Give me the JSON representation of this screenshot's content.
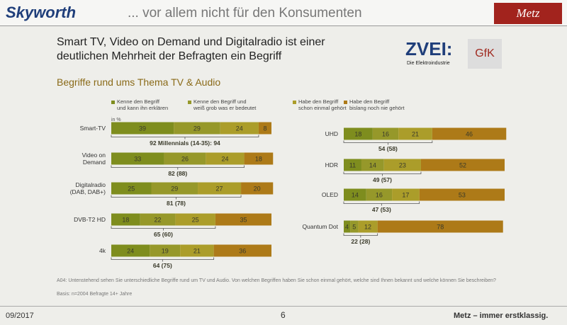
{
  "header": {
    "brand": "Skyworth",
    "tagline": "... vor allem nicht für den Konsumenten",
    "logo": "Metz",
    "title": "Smart TV, Video on Demand und Digitalradio ist einer\ndeutlichen Mehrheit der Befragten ein Begriff",
    "partner_logo": "ZVEI:",
    "partner_sub": "Die Elektroindustrie",
    "partner2": "GfK"
  },
  "chart_data": {
    "type": "stacked-bar-horizontal",
    "subtitle": "Begriffe rund ums Thema TV & Audio",
    "unit_label": "in %",
    "categories": [
      "Smart-TV",
      "Video on\nDemand",
      "Digitalradio\n(DAB, DAB+)",
      "DVB-T2 HD",
      "4k",
      "UHD",
      "HDR",
      "OLED",
      "Quantum Dot"
    ],
    "series": [
      {
        "name": "Kenne den Begriff\nund kann ihn erklären",
        "color": "#7e8d1e",
        "values": [
          39,
          33,
          25,
          18,
          24,
          18,
          11,
          14,
          4
        ]
      },
      {
        "name": "Kenne den Begriff und\nweiß grob was er bedeutet",
        "color": "#96982a",
        "values": [
          29,
          26,
          29,
          22,
          19,
          16,
          14,
          16,
          5
        ]
      },
      {
        "name": "Habe den Begriff\nschon einmal gehört",
        "color": "#ab9d2a",
        "values": [
          24,
          24,
          27,
          25,
          21,
          21,
          23,
          17,
          12
        ]
      },
      {
        "name": "Habe den Begriff\nbislang noch nie gehört",
        "color": "#ad7a18",
        "values": [
          8,
          18,
          20,
          35,
          36,
          46,
          52,
          53,
          78
        ]
      }
    ],
    "annotations": [
      "92 Millennials (14-35): 94",
      "82 (88)",
      "81 (78)",
      "65 (60)",
      "64 (75)",
      "54 (58)",
      "49 (57)",
      "47 (53)",
      "22 (28)"
    ],
    "xlim": [
      0,
      100
    ]
  },
  "footer": {
    "note": "A04: Untenstehend sehen Sie unterschiedliche Begriffe rund um TV und Audio. Von welchen Begriffen haben Sie schon einmal gehört, welche sind Ihnen bekannt und welche können Sie beschreiben?",
    "basis": "Basis: n=2004 Befragte 14+ Jahre",
    "date": "09/2017",
    "page": "6",
    "slogan": "Metz – immer erstklassig."
  }
}
